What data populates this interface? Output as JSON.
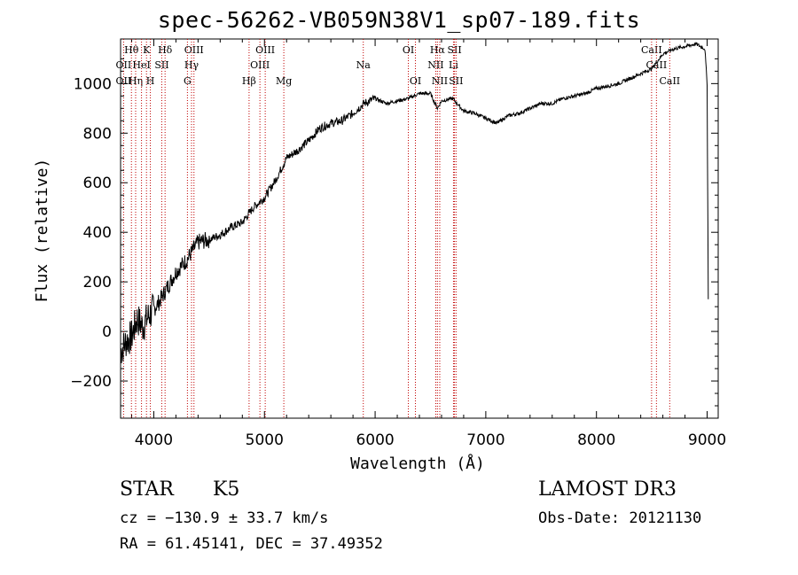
{
  "chart_data": {
    "type": "line",
    "title": "spec-56262-VB059N38V1_sp07-189.fits",
    "xlabel": "Wavelength (Å)",
    "ylabel": "Flux (relative)",
    "xlim": [
      3700,
      9100
    ],
    "ylim": [
      -350,
      1180
    ],
    "x_ticks": [
      4000,
      5000,
      6000,
      7000,
      8000,
      9000
    ],
    "y_ticks": [
      -200,
      0,
      200,
      400,
      600,
      800,
      1000
    ],
    "series": [
      {
        "name": "flux",
        "x": [
          3700,
          3750,
          3800,
          3850,
          3900,
          3950,
          4000,
          4050,
          4100,
          4200,
          4300,
          4400,
          4500,
          4600,
          4700,
          4800,
          4900,
          5000,
          5100,
          5200,
          5300,
          5400,
          5500,
          5600,
          5700,
          5800,
          5900,
          6000,
          6100,
          6200,
          6300,
          6400,
          6500,
          6563,
          6600,
          6700,
          6800,
          6900,
          7000,
          7100,
          7200,
          7300,
          7400,
          7500,
          7600,
          7700,
          7800,
          7900,
          8000,
          8100,
          8200,
          8300,
          8400,
          8500,
          8600,
          8700,
          8800,
          8900,
          8980,
          9000,
          9010
        ],
        "y": [
          -80,
          -40,
          -20,
          50,
          20,
          60,
          90,
          120,
          160,
          240,
          290,
          360,
          370,
          390,
          420,
          440,
          500,
          540,
          610,
          700,
          730,
          770,
          820,
          840,
          850,
          880,
          920,
          940,
          920,
          930,
          940,
          960,
          960,
          900,
          930,
          940,
          890,
          880,
          860,
          840,
          870,
          880,
          900,
          920,
          920,
          940,
          950,
          960,
          980,
          990,
          1000,
          1020,
          1040,
          1060,
          1120,
          1140,
          1150,
          1160,
          1140,
          1000,
          130
        ]
      }
    ],
    "lines": [
      {
        "label": "Hθ",
        "x": 3798,
        "row": 0
      },
      {
        "label": "OII",
        "x": 3727,
        "row": 1
      },
      {
        "label": "OII",
        "x": 3727,
        "row": 2
      },
      {
        "label": "Hη",
        "x": 3836,
        "row": 2
      },
      {
        "label": "HeI",
        "x": 3889,
        "row": 1
      },
      {
        "label": "K",
        "x": 3934,
        "row": 0
      },
      {
        "label": "H",
        "x": 3969,
        "row": 2
      },
      {
        "label": "SII",
        "x": 4072,
        "row": 1
      },
      {
        "label": "Hδ",
        "x": 4102,
        "row": 0
      },
      {
        "label": "OIII",
        "x": 4363,
        "row": 0
      },
      {
        "label": "Hγ",
        "x": 4341,
        "row": 1
      },
      {
        "label": "G",
        "x": 4304,
        "row": 2
      },
      {
        "label": "Hβ",
        "x": 4861,
        "row": 2
      },
      {
        "label": "OIII",
        "x": 4959,
        "row": 1
      },
      {
        "label": "OIII",
        "x": 5007,
        "row": 0
      },
      {
        "label": "Mg",
        "x": 5175,
        "row": 2
      },
      {
        "label": "Na",
        "x": 5893,
        "row": 1
      },
      {
        "label": "OI",
        "x": 6300,
        "row": 0
      },
      {
        "label": "OI",
        "x": 6364,
        "row": 2
      },
      {
        "label": "Hα",
        "x": 6563,
        "row": 0
      },
      {
        "label": "NII",
        "x": 6548,
        "row": 1
      },
      {
        "label": "NII",
        "x": 6584,
        "row": 2
      },
      {
        "label": "SII",
        "x": 6717,
        "row": 0
      },
      {
        "label": "Li",
        "x": 6708,
        "row": 1
      },
      {
        "label": "SII",
        "x": 6731,
        "row": 2
      },
      {
        "label": "CaII",
        "x": 8498,
        "row": 0
      },
      {
        "label": "CaII",
        "x": 8542,
        "row": 1
      },
      {
        "label": "CaII",
        "x": 8662,
        "row": 2
      }
    ]
  },
  "info": {
    "object_class": "STAR",
    "subclass": "K5",
    "survey": "LAMOST DR3",
    "redshift": "cz = −130.9 ± 33.7 km/s",
    "obs_date": "Obs-Date: 20121130",
    "coords": "RA =  61.45141, DEC =  37.49352"
  }
}
